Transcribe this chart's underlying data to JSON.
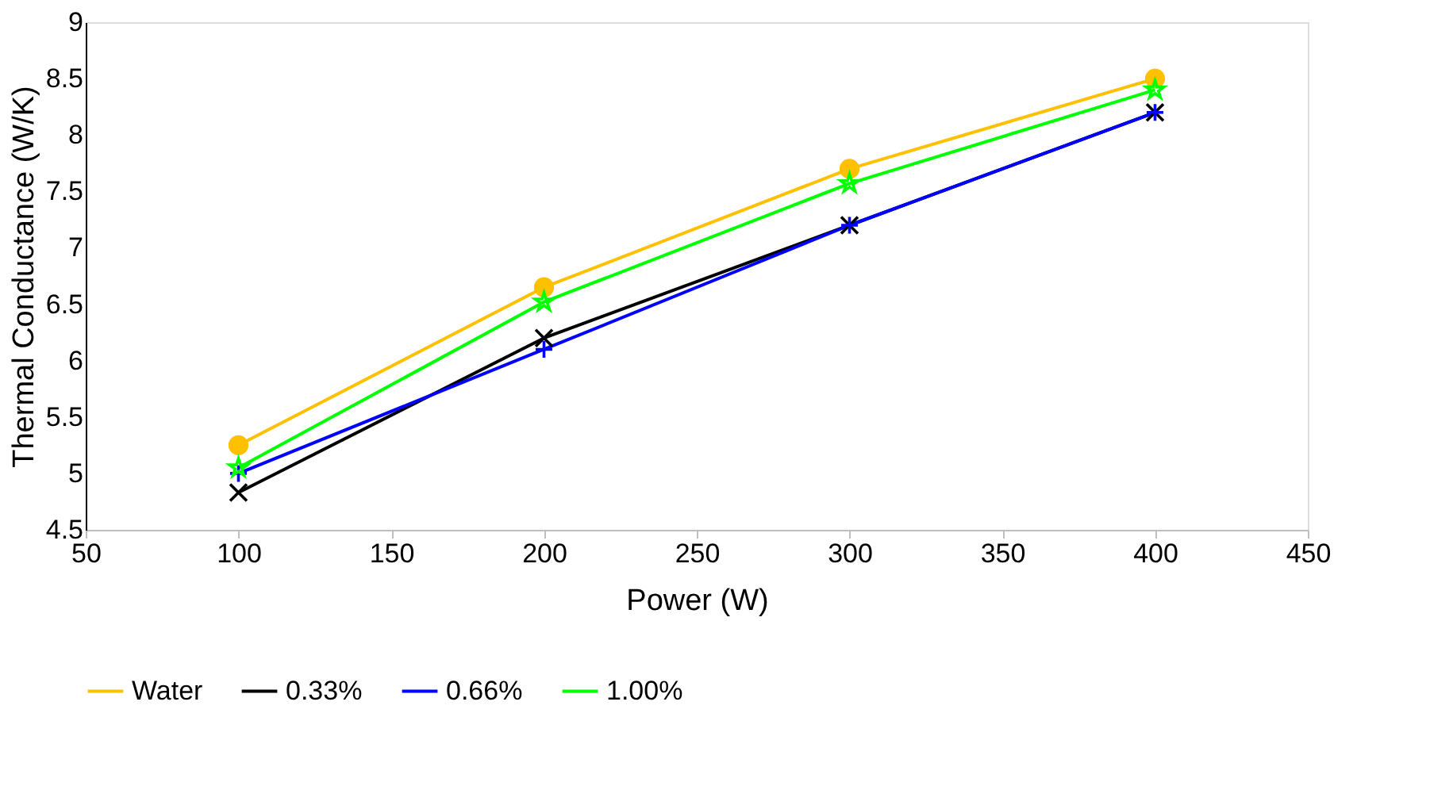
{
  "chart_data": {
    "type": "line",
    "xlabel": "Power (W)",
    "ylabel": "Thermal Conductance (W/K)",
    "x": [
      100,
      200,
      300,
      400
    ],
    "series": [
      {
        "name": "Water",
        "color": "#ffc000",
        "marker": "circle",
        "values": [
          5.25,
          6.65,
          7.7,
          8.5
        ]
      },
      {
        "name": "0.33%",
        "color": "#000000",
        "marker": "cross",
        "values": [
          4.83,
          6.2,
          7.2,
          8.2
        ]
      },
      {
        "name": "0.66%",
        "color": "#0000ff",
        "marker": "plus",
        "values": [
          5.0,
          6.1,
          7.2,
          8.2
        ]
      },
      {
        "name": "1.00%",
        "color": "#00ff00",
        "marker": "star",
        "values": [
          5.05,
          6.52,
          7.57,
          8.4
        ]
      }
    ],
    "xlim": [
      50,
      450
    ],
    "xticks": [
      50,
      100,
      150,
      200,
      250,
      300,
      350,
      400,
      450
    ],
    "ylim": [
      4.5,
      9
    ],
    "yticks": [
      4.5,
      5,
      5.5,
      6,
      6.5,
      7,
      7.5,
      8,
      8.5,
      9
    ],
    "grid": false,
    "legend": "bottom",
    "line_style": "solid"
  }
}
